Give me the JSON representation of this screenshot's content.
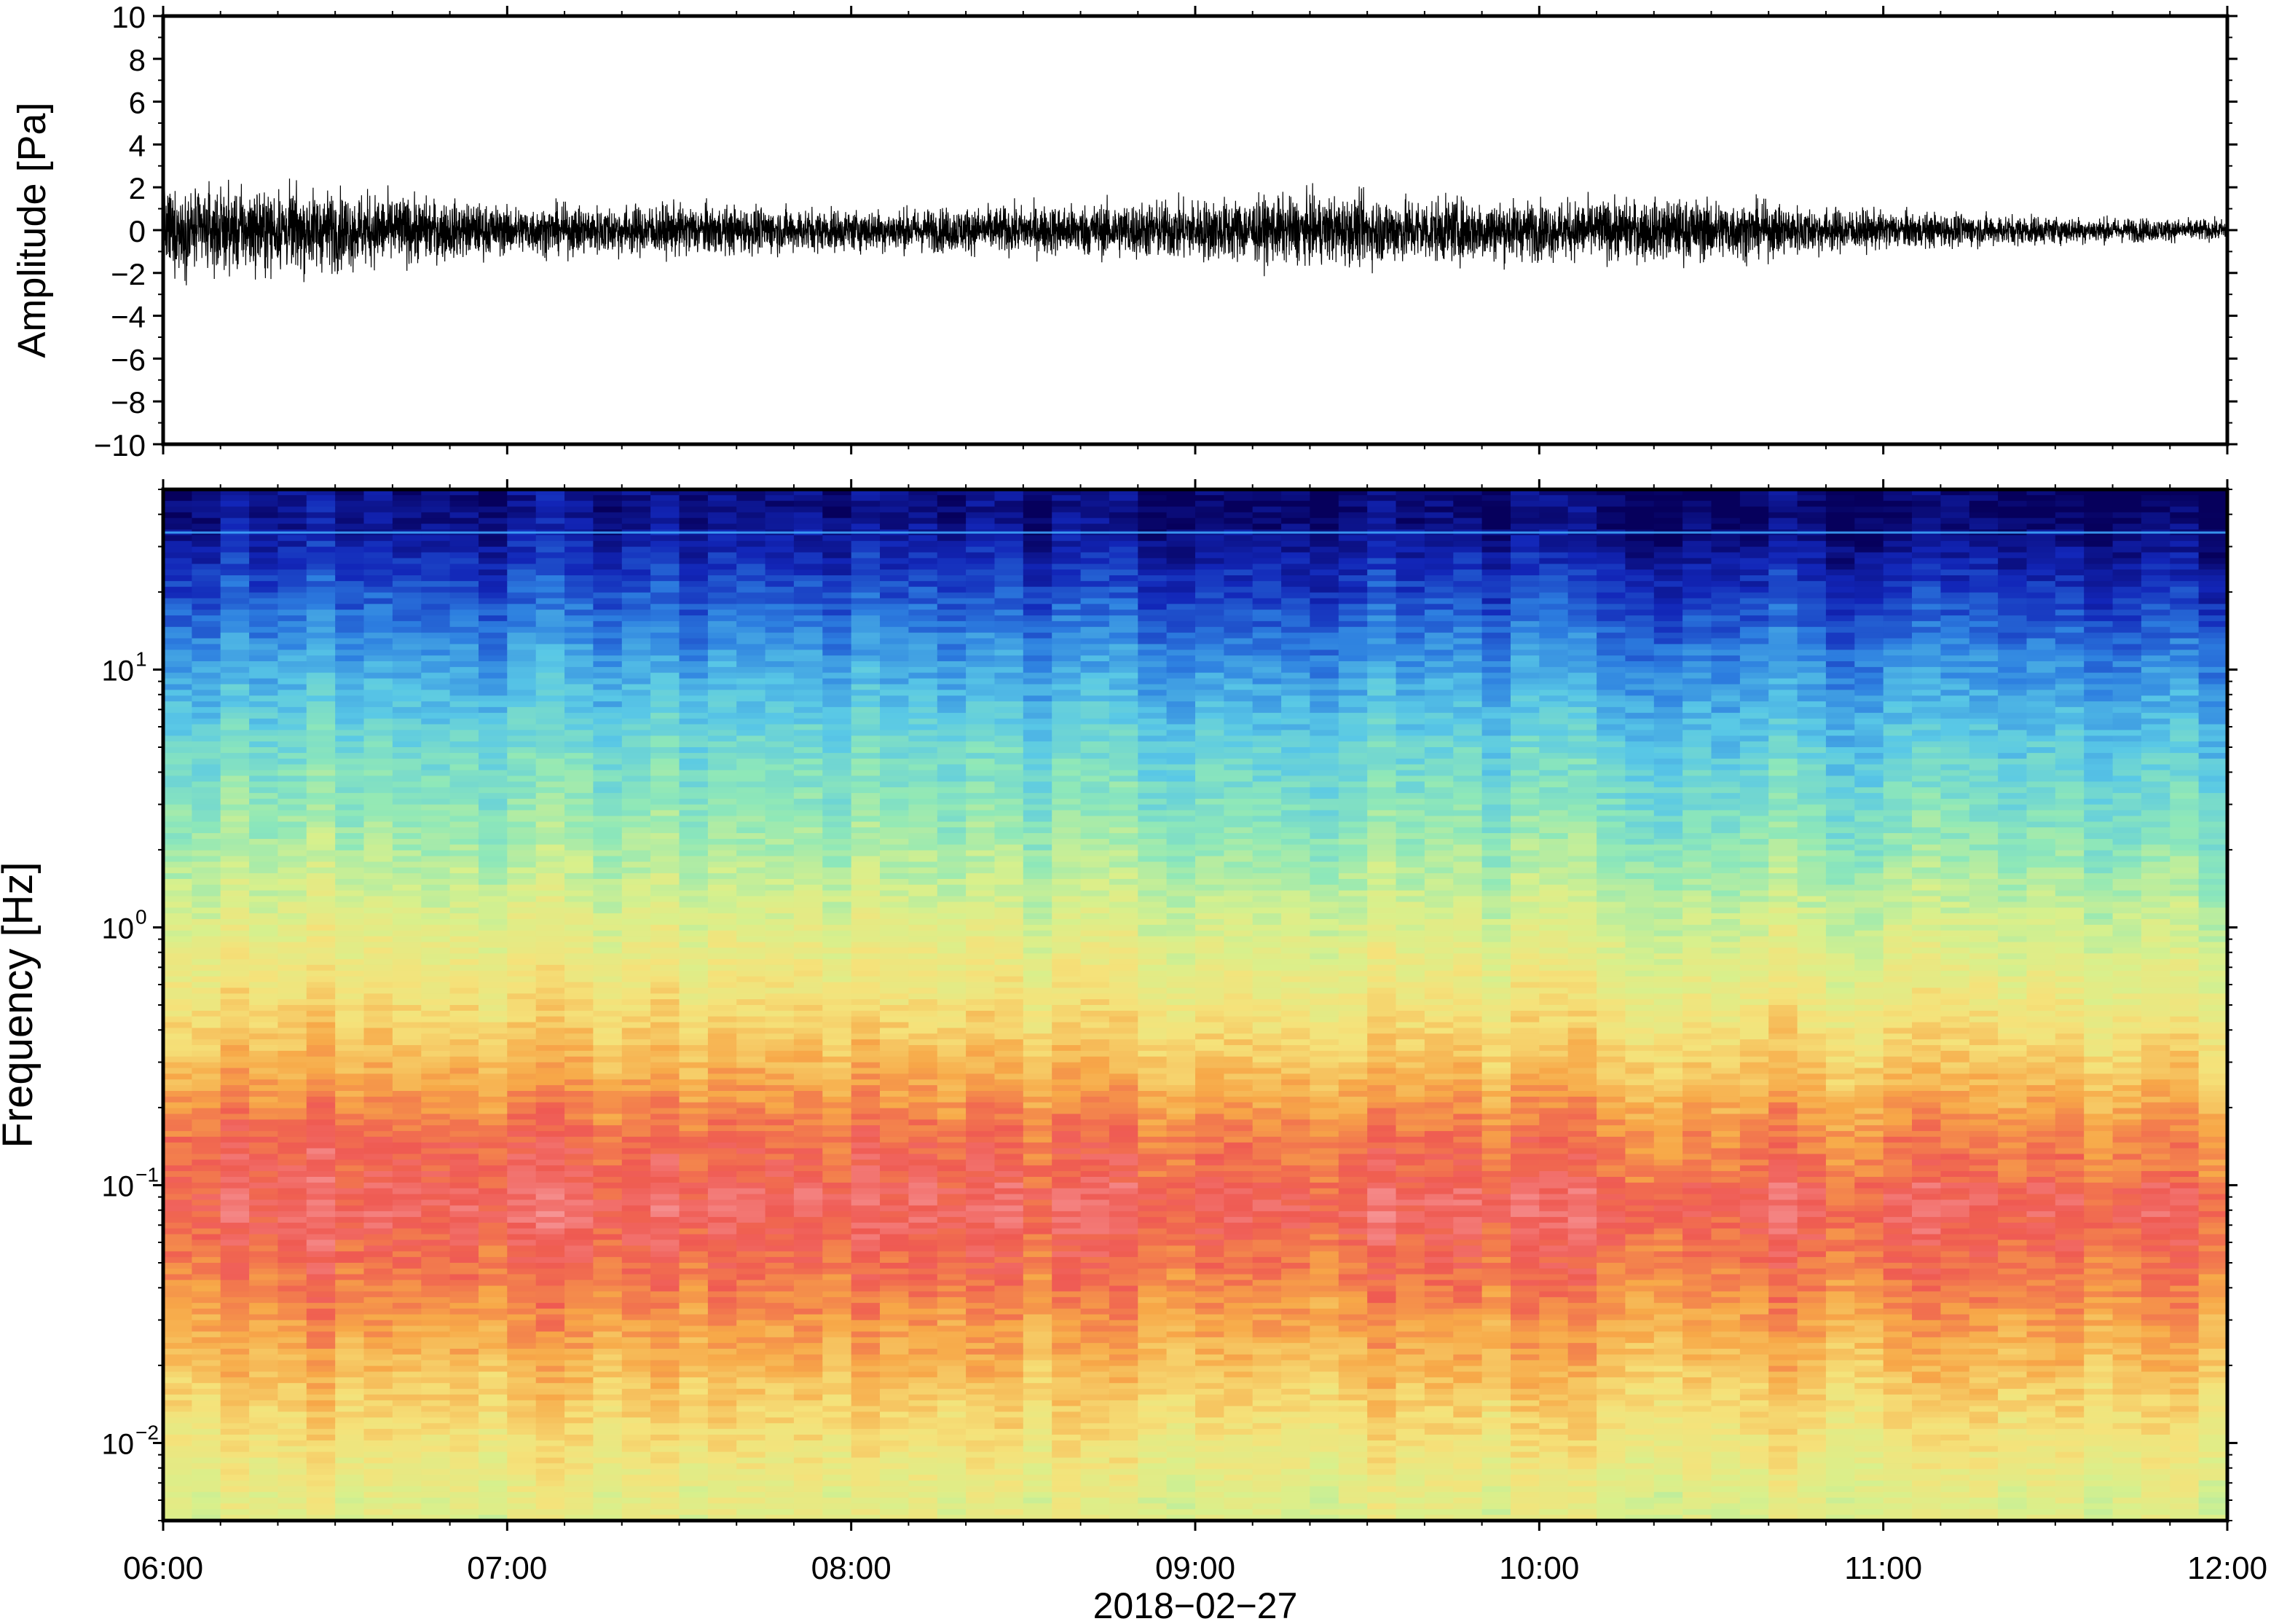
{
  "chart_data": [
    {
      "type": "line",
      "title": "",
      "xlabel": "",
      "ylabel": "Amplitude [Pa]",
      "ylim": [
        -10,
        10
      ],
      "yticks": [
        10,
        8,
        6,
        4,
        2,
        0,
        -2,
        -4,
        -6,
        -8,
        -10
      ],
      "ytick_labels": [
        "10",
        "8",
        "6",
        "4",
        "2",
        "0",
        "−2",
        "−4",
        "−6",
        "−8",
        "−10"
      ],
      "x_range": [
        "06:00",
        "12:00"
      ],
      "line_color": "#000000",
      "grid": false,
      "envelope": {
        "x": [
          "06:00",
          "06:30",
          "07:00",
          "07:30",
          "08:00",
          "08:30",
          "09:00",
          "09:30",
          "10:00",
          "10:30",
          "11:00",
          "11:30",
          "12:00"
        ],
        "amplitude_pa": [
          2.4,
          2.3,
          1.4,
          1.5,
          1.2,
          1.4,
          1.8,
          2.0,
          1.7,
          1.8,
          1.1,
          0.8,
          0.6
        ]
      }
    },
    {
      "type": "heatmap",
      "title": "",
      "xlabel": "2018−02−27",
      "ylabel": "Frequency [Hz]",
      "yscale": "log",
      "ylim": [
        0.005,
        50
      ],
      "yticks": [
        0.01,
        0.1,
        1,
        10
      ],
      "ytick_labels": [
        {
          "base": "10",
          "exp": "−2"
        },
        {
          "base": "10",
          "exp": "−1"
        },
        {
          "base": "10",
          "exp": "0"
        },
        {
          "base": "10",
          "exp": "1"
        }
      ],
      "xticks": [
        "06:00",
        "07:00",
        "08:00",
        "09:00",
        "10:00",
        "11:00",
        "12:00"
      ],
      "x_range": [
        "06:00",
        "12:00"
      ],
      "colormap": [
        "#06005c",
        "#1226b8",
        "#2d7fe0",
        "#59c8e6",
        "#8fe8b8",
        "#d8f08c",
        "#f5e27a",
        "#f7a848",
        "#ef5a52",
        "#f79a9c"
      ],
      "grid": false,
      "power_profile": {
        "frequency_hz": [
          0.006,
          0.01,
          0.02,
          0.04,
          0.08,
          0.15,
          0.3,
          0.6,
          1,
          2,
          5,
          10,
          20,
          40
        ],
        "level": [
          0.6,
          0.66,
          0.75,
          0.84,
          0.92,
          0.88,
          0.76,
          0.66,
          0.6,
          0.5,
          0.4,
          0.3,
          0.18,
          0.06
        ]
      },
      "spectral_line_hz": 34
    }
  ]
}
